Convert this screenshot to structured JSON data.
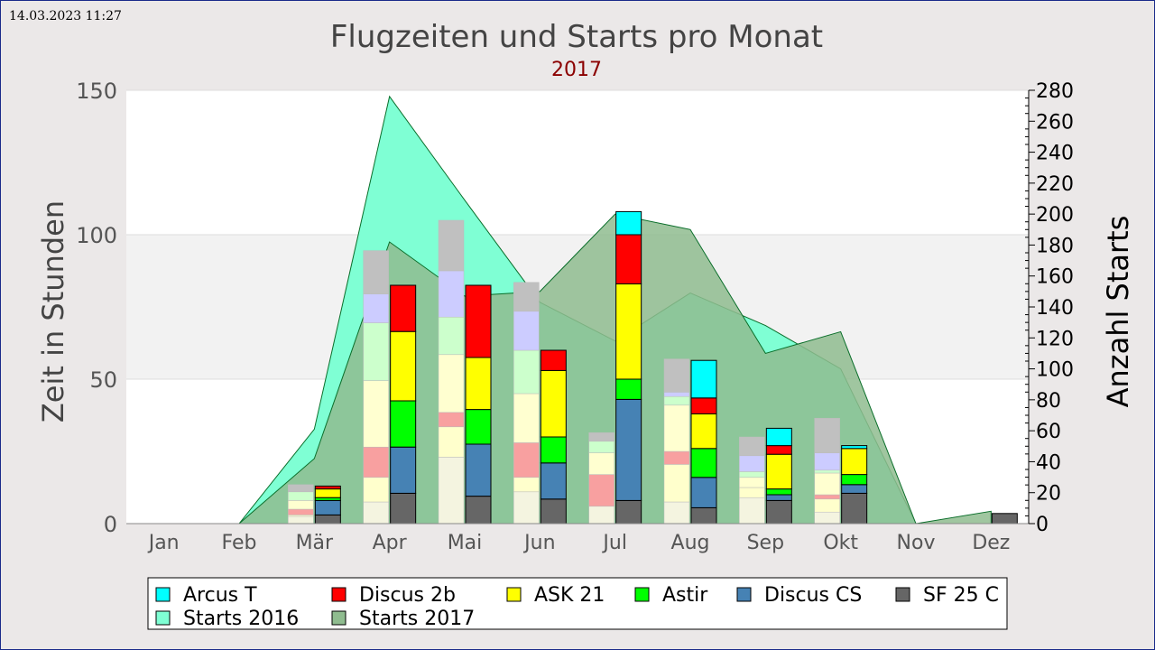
{
  "timestamp": "14.03.2023 11:27",
  "chart_data": {
    "type": "bar",
    "title": "Flugzeiten und Starts pro Monat",
    "subtitle": "2017",
    "ylabel": "Zeit in Stunden",
    "y2label": "Anzahl Starts",
    "ylim": [
      0,
      150
    ],
    "y2lim": [
      0,
      280
    ],
    "yticks": [
      0,
      50,
      100,
      150
    ],
    "y2ticks": [
      0,
      20,
      40,
      60,
      80,
      100,
      120,
      140,
      160,
      180,
      200,
      220,
      240,
      260,
      280
    ],
    "grid": "horizontal bands",
    "legend_position": "bottom",
    "categories": [
      "Jan",
      "Feb",
      "Mär",
      "Apr",
      "Mai",
      "Jun",
      "Jul",
      "Aug",
      "Sep",
      "Okt",
      "Nov",
      "Dez"
    ],
    "series": [
      {
        "name": "Arcus T",
        "color": "#00ffff",
        "values": [
          0,
          0,
          0,
          0,
          0,
          0,
          8,
          13,
          6,
          1,
          0,
          0
        ]
      },
      {
        "name": "Discus 2b",
        "color": "#ff0000",
        "values": [
          0,
          0,
          1,
          16,
          25,
          7,
          17,
          5.5,
          3,
          0,
          0,
          0
        ]
      },
      {
        "name": "ASK 21",
        "color": "#ffff00",
        "values": [
          0,
          0,
          3,
          24,
          18,
          23,
          33,
          12,
          12,
          9,
          0,
          0
        ]
      },
      {
        "name": "Astir",
        "color": "#00ff00",
        "values": [
          0,
          0,
          1,
          16,
          12,
          9,
          7,
          10,
          2,
          3.5,
          0,
          0
        ]
      },
      {
        "name": "Discus CS",
        "color": "#4682b4",
        "values": [
          0,
          0,
          5,
          16,
          18,
          12.5,
          35,
          10.5,
          2,
          3,
          0,
          0
        ]
      },
      {
        "name": "SF 25 C",
        "color": "#666666",
        "values": [
          0,
          0,
          3,
          10.5,
          9.5,
          8.5,
          8,
          5.5,
          8,
          10.5,
          0,
          3.5
        ]
      }
    ],
    "comparison_bars": [
      {
        "color": "#f4f4e0",
        "values": [
          0,
          0,
          2.5,
          7.5,
          23,
          11,
          6,
          7.5,
          9,
          4,
          0,
          0
        ]
      },
      {
        "color": "#ffffcc",
        "values": [
          0,
          0,
          0.5,
          8.5,
          10.5,
          5,
          0,
          13,
          3.5,
          4.5,
          0,
          0
        ]
      },
      {
        "color": "#f8a0a0",
        "values": [
          0,
          0,
          2,
          10.5,
          5,
          12,
          11,
          4.5,
          0,
          1.5,
          0,
          0
        ]
      },
      {
        "color": "#ffffd0",
        "values": [
          0,
          0,
          3,
          23,
          20,
          17,
          7.5,
          16,
          3.5,
          7.5,
          0,
          0
        ]
      },
      {
        "color": "#ccffcc",
        "values": [
          0,
          0,
          3,
          20,
          13,
          15,
          4,
          3,
          2,
          1,
          0,
          0
        ]
      },
      {
        "color": "#ccccff",
        "values": [
          0,
          0,
          0,
          10,
          16,
          13.5,
          0,
          1.5,
          5.5,
          6,
          0,
          0
        ]
      },
      {
        "color": "#c0c0c0",
        "values": [
          0,
          0,
          2.5,
          15,
          17.5,
          10,
          3,
          11.5,
          6.5,
          12,
          0,
          0
        ]
      }
    ],
    "area_series": [
      {
        "name": "Starts 2016",
        "color": "#7fffd4",
        "values": [
          0,
          0,
          61,
          276,
          209,
          143,
          118,
          149,
          128,
          100,
          0,
          0
        ]
      },
      {
        "name": "Starts 2017",
        "color": "#8fbc8f",
        "values": [
          0,
          0,
          42,
          182,
          147,
          150,
          200,
          190,
          110,
          124,
          0,
          8
        ]
      }
    ]
  },
  "legend": {
    "row1": [
      "Arcus T",
      "Discus 2b",
      "ASK 21",
      "Astir",
      "Discus CS",
      "SF 25 C"
    ],
    "row2": [
      "Starts 2016",
      "Starts 2017"
    ]
  }
}
